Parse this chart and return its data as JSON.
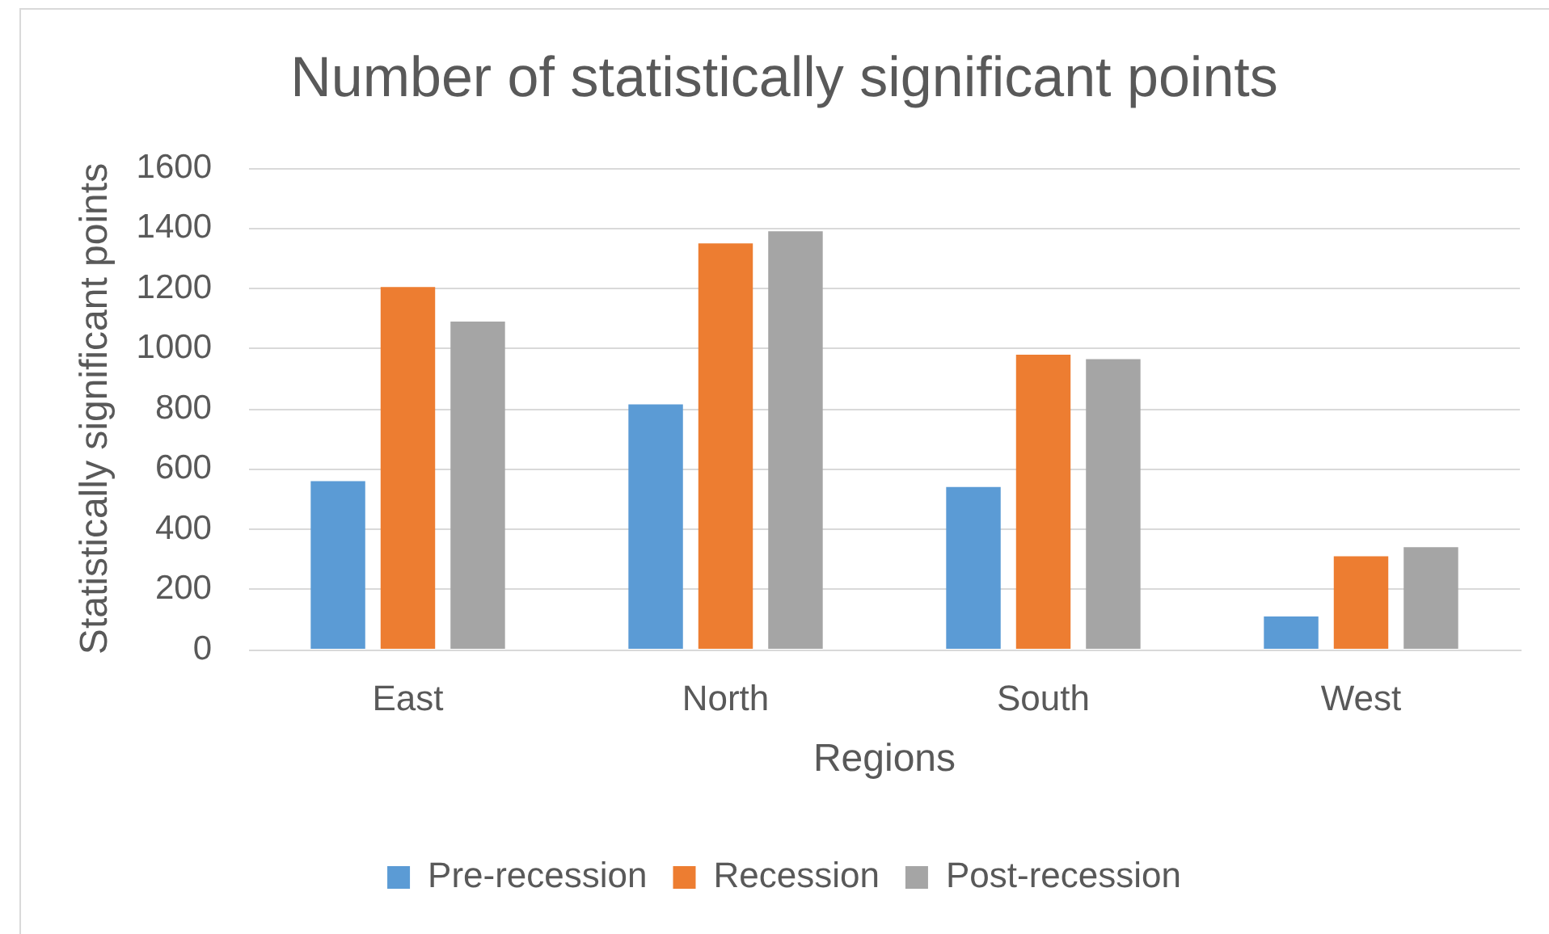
{
  "chart_data": {
    "type": "bar",
    "title": "Number of statistically significant points",
    "xlabel": "Regions",
    "ylabel": "Statistically significant points",
    "categories": [
      "East",
      "North",
      "South",
      "West"
    ],
    "series": [
      {
        "name": "Pre-recession",
        "color": "#5b9bd5",
        "values": [
          560,
          815,
          540,
          110
        ]
      },
      {
        "name": "Recession",
        "color": "#ed7d31",
        "values": [
          1205,
          1350,
          980,
          310
        ]
      },
      {
        "name": "Post-recession",
        "color": "#a5a5a5",
        "values": [
          1090,
          1390,
          965,
          340
        ]
      }
    ],
    "ylim": [
      0,
      1600
    ],
    "yticks": [
      0,
      200,
      400,
      600,
      800,
      1000,
      1200,
      1400,
      1600
    ],
    "grid": "y",
    "legend": "bottom"
  }
}
